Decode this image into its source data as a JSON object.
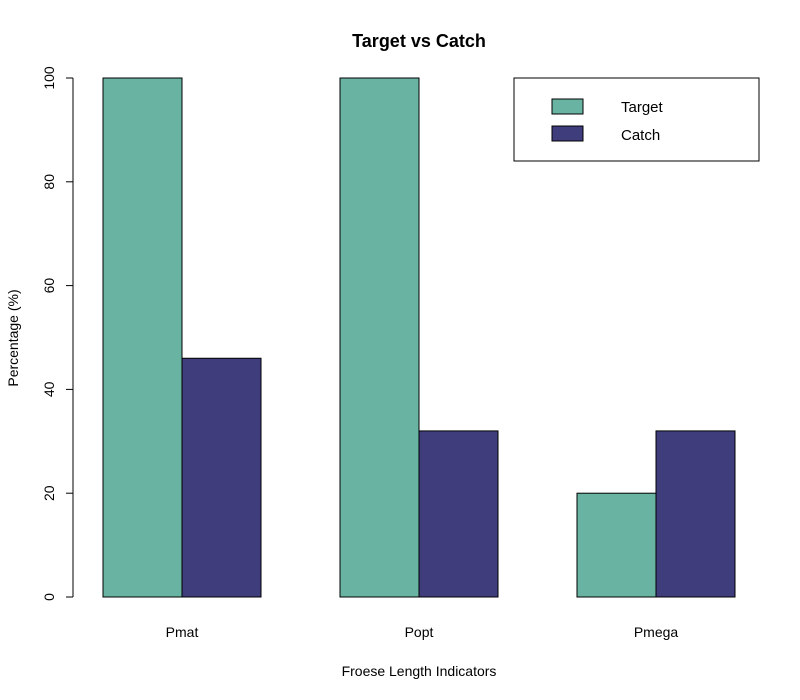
{
  "chart_data": {
    "type": "bar",
    "title": "Target vs Catch",
    "xlabel": "Froese Length Indicators",
    "ylabel": "Percentage (%)",
    "categories": [
      "Pmat",
      "Popt",
      "Pmega"
    ],
    "series": [
      {
        "name": "Target",
        "values": [
          100,
          100,
          20
        ],
        "color": "#69B3A2"
      },
      {
        "name": "Catch",
        "values": [
          46,
          32,
          32
        ],
        "color": "#3F3D7C"
      }
    ],
    "ylim": [
      0,
      100
    ],
    "yticks": [
      0,
      20,
      40,
      60,
      80,
      100
    ],
    "grid": false,
    "legend_position": "top-right"
  }
}
